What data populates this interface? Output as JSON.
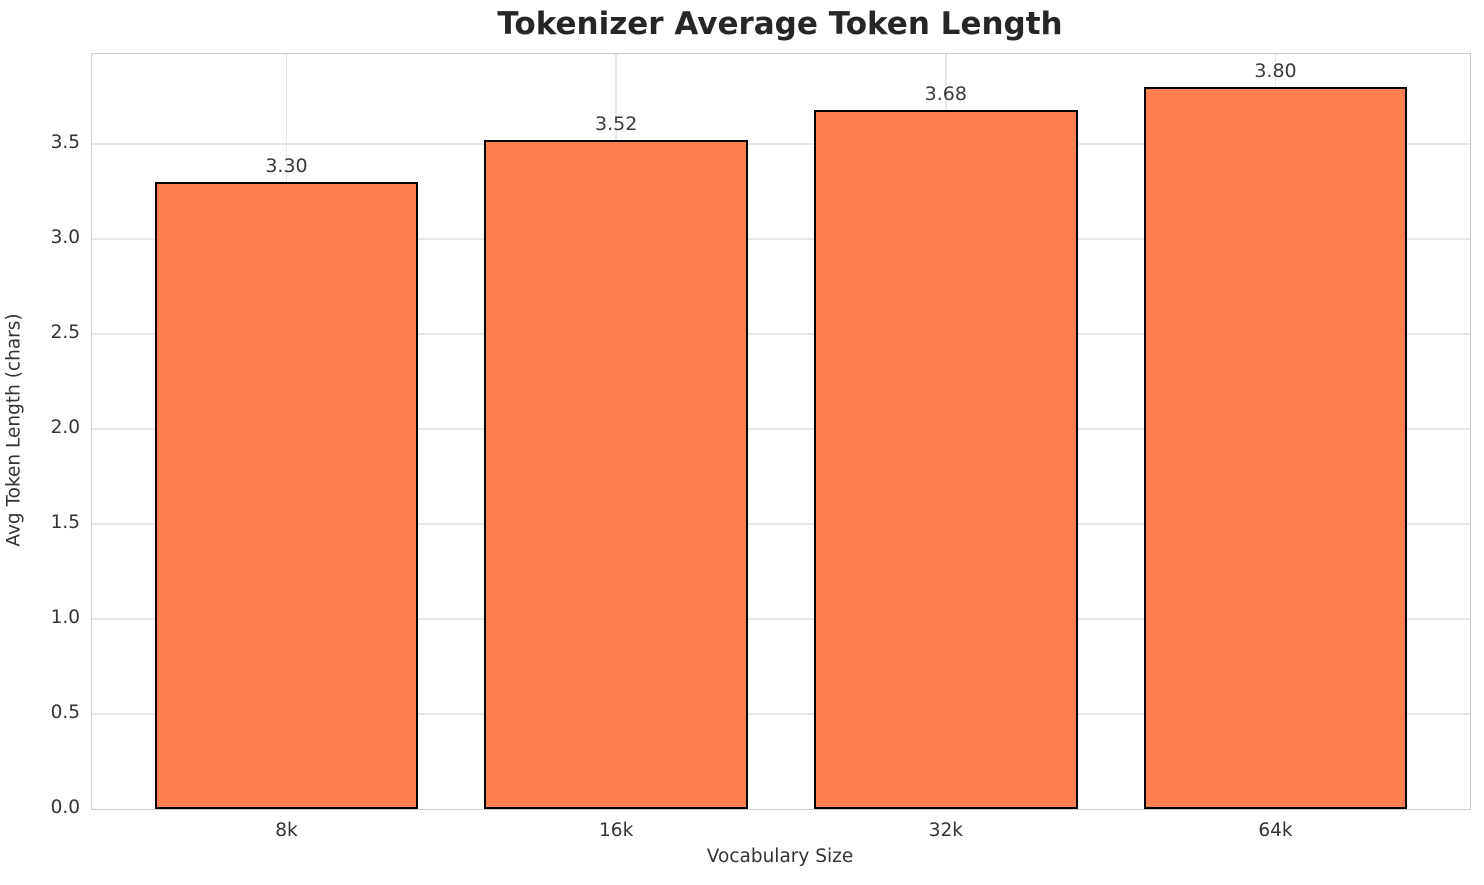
{
  "chart_data": {
    "type": "bar",
    "title": "Tokenizer Average Token Length",
    "xlabel": "Vocabulary Size",
    "ylabel": "Avg Token Length (chars)",
    "categories": [
      "8k",
      "16k",
      "32k",
      "64k"
    ],
    "values": [
      3.3,
      3.52,
      3.68,
      3.8
    ],
    "value_labels": [
      "3.30",
      "3.52",
      "3.68",
      "3.80"
    ],
    "yticks": [
      0.0,
      0.5,
      1.0,
      1.5,
      2.0,
      2.5,
      3.0,
      3.5
    ],
    "ytick_labels": [
      "0.0",
      "0.5",
      "1.0",
      "1.5",
      "2.0",
      "2.5",
      "3.0",
      "3.5"
    ],
    "ylim": [
      0,
      3.974
    ],
    "xlim": [
      -0.59,
      3.59
    ],
    "bar_width": 0.8,
    "grid": true,
    "legend": false,
    "colors": {
      "bar_fill": "#FF7F50",
      "bar_edge": "#000000",
      "grid": "#e7e7e7",
      "spine": "#cccccc",
      "tick_text": "#333333",
      "title_text": "#262626"
    }
  }
}
